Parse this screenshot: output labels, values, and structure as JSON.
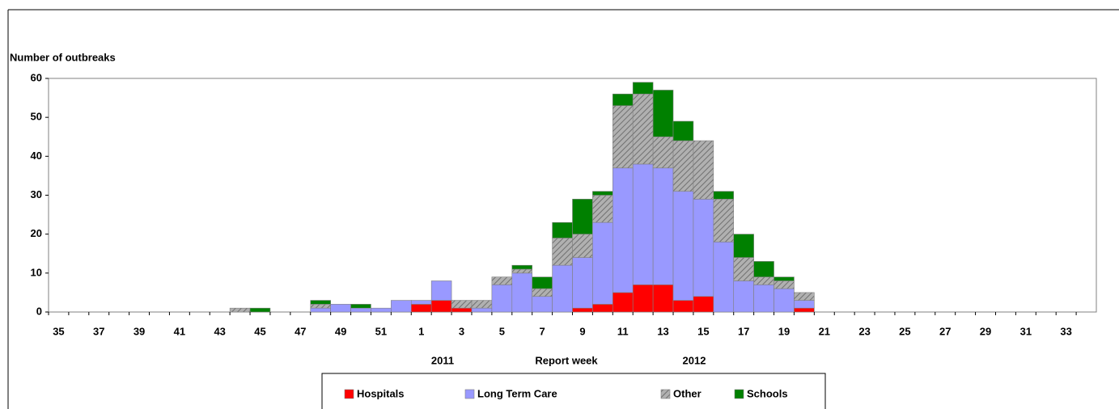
{
  "chart_data": {
    "type": "stacked_bar",
    "y_label": "Number of outbreaks",
    "x_label": "Report week",
    "annotations": [
      "2011",
      "2012"
    ],
    "categories": [
      "35",
      null,
      "37",
      null,
      "39",
      null,
      "41",
      null,
      "43",
      null,
      "45",
      null,
      "47",
      null,
      "49",
      null,
      "51",
      null,
      "1",
      null,
      "3",
      null,
      "5",
      null,
      "7",
      null,
      "9",
      null,
      "11",
      null,
      "13",
      null,
      "15",
      null,
      "17",
      null,
      "19",
      null,
      "21",
      null,
      "23",
      null,
      "25",
      null,
      "27",
      null,
      "29",
      null,
      "31",
      null,
      "33",
      null
    ],
    "series": [
      {
        "name": "Hospitals",
        "color": "#ff0000",
        "values": [
          0,
          0,
          0,
          0,
          0,
          0,
          0,
          0,
          0,
          0,
          0,
          0,
          0,
          0,
          0,
          0,
          0,
          0,
          2,
          3,
          1,
          0,
          0,
          0,
          0,
          0,
          1,
          2,
          5,
          7,
          7,
          3,
          4,
          0,
          0,
          0,
          0,
          1,
          0,
          0,
          0,
          0,
          0,
          0,
          0,
          0,
          0,
          0,
          0,
          0,
          0,
          0
        ]
      },
      {
        "name": "Long Term Care",
        "color": "#9999ff",
        "values": [
          0,
          0,
          0,
          0,
          0,
          0,
          0,
          0,
          0,
          0,
          0,
          0,
          0,
          1,
          2,
          1,
          1,
          3,
          1,
          5,
          0,
          1,
          7,
          10,
          4,
          12,
          13,
          21,
          32,
          31,
          30,
          28,
          25,
          18,
          8,
          7,
          6,
          2,
          0,
          0,
          0,
          0,
          0,
          0,
          0,
          0,
          0,
          0,
          0,
          0,
          0,
          0
        ]
      },
      {
        "name": "Other",
        "color": "#b0b0b0",
        "hatch": true,
        "values": [
          0,
          0,
          0,
          0,
          0,
          0,
          0,
          0,
          0,
          1,
          0,
          0,
          0,
          1,
          0,
          0,
          0,
          0,
          0,
          0,
          2,
          2,
          2,
          1,
          2,
          7,
          6,
          7,
          16,
          18,
          8,
          13,
          15,
          11,
          6,
          2,
          2,
          2,
          0,
          0,
          0,
          0,
          0,
          0,
          0,
          0,
          0,
          0,
          0,
          0,
          0,
          0
        ]
      },
      {
        "name": "Schools",
        "color": "#008000",
        "values": [
          0,
          0,
          0,
          0,
          0,
          0,
          0,
          0,
          0,
          0,
          1,
          0,
          0,
          1,
          0,
          1,
          0,
          0,
          0,
          0,
          0,
          0,
          0,
          1,
          3,
          4,
          9,
          1,
          3,
          3,
          12,
          5,
          0,
          2,
          6,
          4,
          1,
          0,
          0,
          0,
          0,
          0,
          0,
          0,
          0,
          0,
          0,
          0,
          0,
          0,
          0,
          0
        ]
      }
    ],
    "ylim": [
      0,
      60
    ],
    "yticks": [
      0,
      10,
      20,
      30,
      40,
      50,
      60
    ],
    "grid": false,
    "legend": "bottom"
  }
}
